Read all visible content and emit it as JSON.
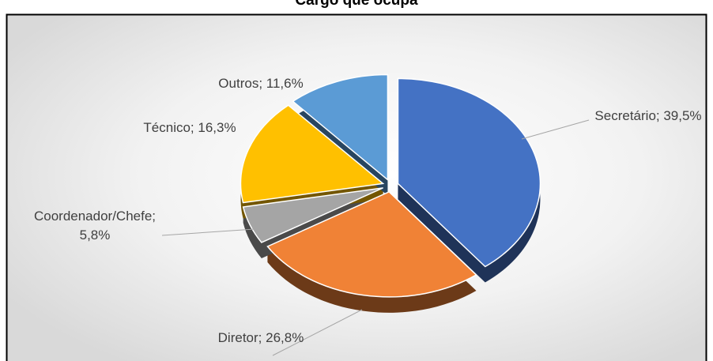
{
  "chart_data": {
    "type": "pie",
    "title": "Cargo que ocupa",
    "labels": [
      "Secretário; 39,5%",
      "Diretor; 26,8%",
      "Coordenador/Chefe; 5,8%",
      "Técnico; 16,3%",
      "Outros; 11,6%"
    ],
    "values": [
      39.5,
      26.8,
      5.8,
      16.3,
      11.6
    ],
    "colors": [
      "#4472c4",
      "#f08236",
      "#a5a5a5",
      "#ffc000",
      "#5b9bd5"
    ]
  }
}
